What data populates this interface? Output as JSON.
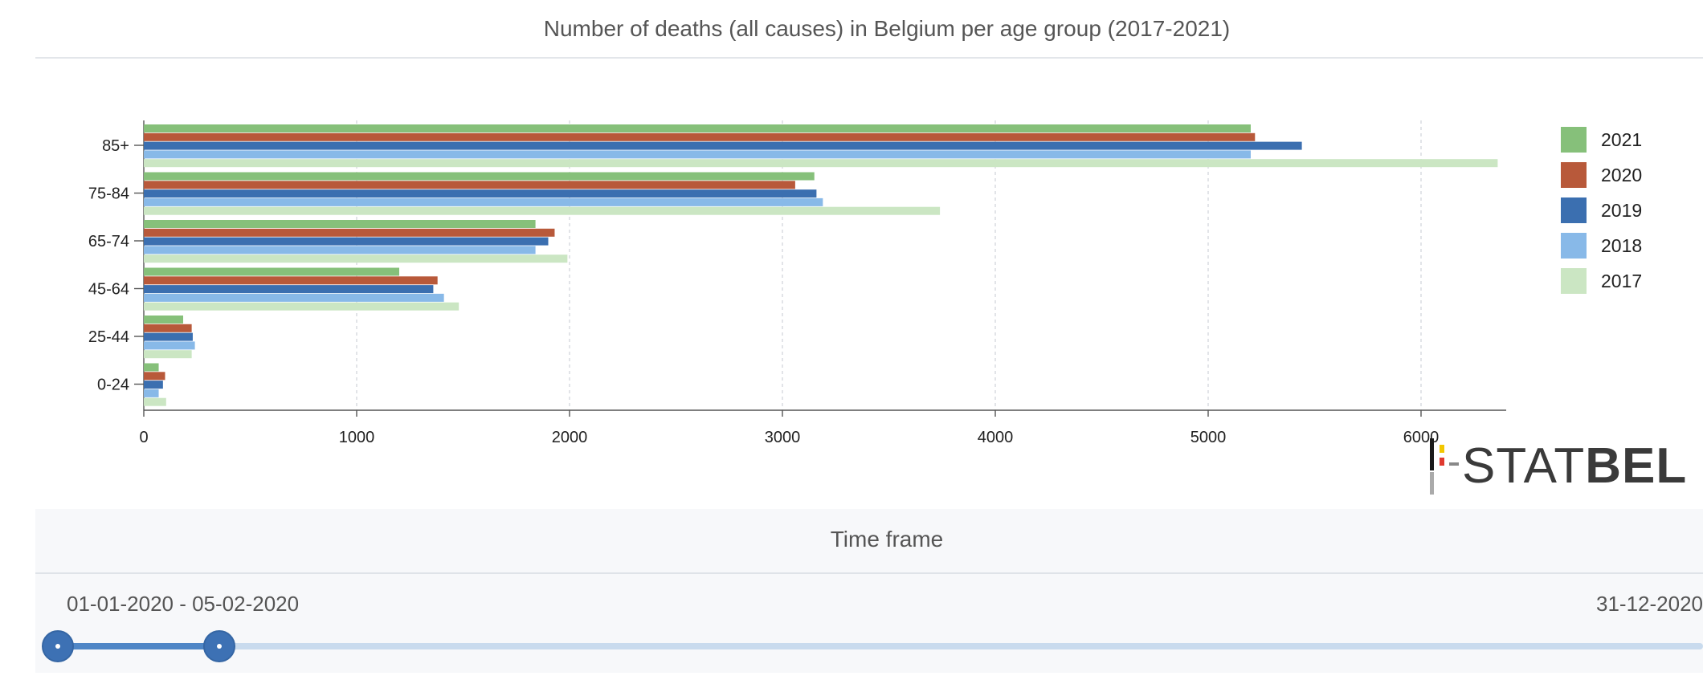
{
  "chart_data": {
    "type": "bar",
    "orientation": "horizontal",
    "title": "Number of deaths (all causes) in Belgium per age group (2017-2021)",
    "categories": [
      "85+",
      "75-84",
      "65-74",
      "45-64",
      "25-44",
      "0-24"
    ],
    "series": [
      {
        "name": "2021",
        "color": "#86c07a",
        "values": [
          5200,
          3150,
          1840,
          1200,
          185,
          70
        ]
      },
      {
        "name": "2020",
        "color": "#b8593a",
        "values": [
          5220,
          3060,
          1930,
          1380,
          225,
          100
        ]
      },
      {
        "name": "2019",
        "color": "#3b6fb0",
        "values": [
          5440,
          3160,
          1900,
          1360,
          230,
          90
        ]
      },
      {
        "name": "2018",
        "color": "#88b9e8",
        "values": [
          5200,
          3190,
          1840,
          1410,
          240,
          70
        ]
      },
      {
        "name": "2017",
        "color": "#cbe6c3",
        "values": [
          6360,
          3740,
          1990,
          1480,
          225,
          105
        ]
      }
    ],
    "xlim": [
      0,
      6400
    ],
    "xticks": [
      0,
      1000,
      2000,
      3000,
      4000,
      5000,
      6000
    ],
    "grid": true,
    "legend": "right"
  },
  "logo": {
    "text_light": "STAT",
    "text_bold": "BEL"
  },
  "timeframe": {
    "title": "Time frame",
    "selected_range": "01-01-2020 - 05-02-2020",
    "end_date": "31-12-2020",
    "range_fraction": [
      0.0,
      0.098
    ]
  }
}
